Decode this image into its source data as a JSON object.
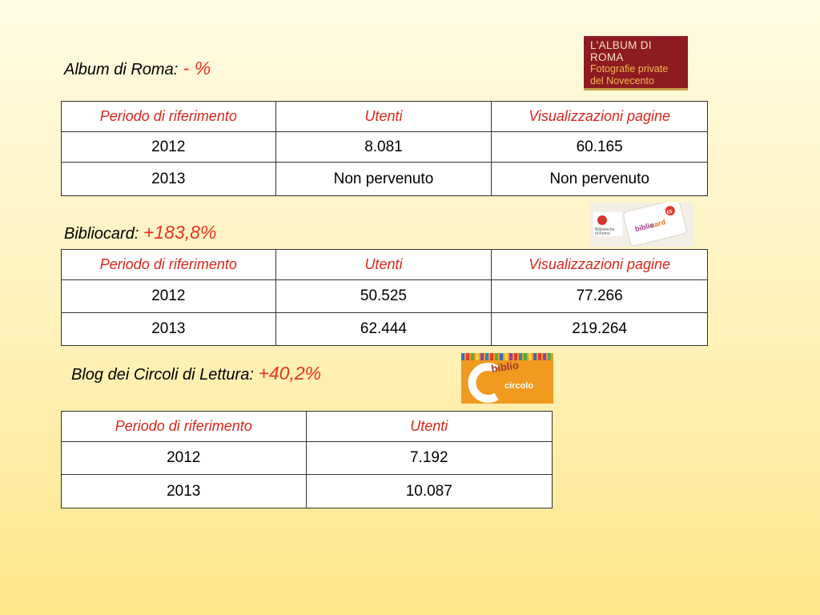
{
  "sections": {
    "album": {
      "title": "Album di Roma:",
      "delta": " - %",
      "headers": [
        "Periodo di riferimento",
        "Utenti",
        "Visualizzazioni pagine"
      ],
      "rows": [
        [
          "2012",
          "8.081",
          "60.165"
        ],
        [
          "2013",
          "Non pervenuto",
          "Non pervenuto"
        ]
      ],
      "logo": {
        "line1": "L'ALBUM DI ROMA",
        "line2": "Fotografie private",
        "line3": "del Novecento"
      }
    },
    "bibliocard": {
      "title": "Bibliocard: ",
      "delta": "+183,8%",
      "headers": [
        "Periodo di riferimento",
        "Utenti",
        "Visualizzazioni pagine"
      ],
      "rows": [
        [
          "2012",
          "50.525",
          "77.266"
        ],
        [
          "2013",
          "62.444",
          "219.264"
        ]
      ],
      "logo": {
        "biblio": "biblio",
        "card": "card",
        "brand_line1": "Biblioteche",
        "brand_line2": "di Roma",
        "badge": "€5"
      }
    },
    "blog": {
      "title": "Blog dei Circoli di Lettura: ",
      "delta": "+40,2%",
      "headers": [
        "Periodo di riferimento",
        "Utenti"
      ],
      "rows": [
        [
          "2012",
          "7.192"
        ],
        [
          "2013",
          "10.087"
        ]
      ],
      "logo": {
        "biblio": "biblio",
        "circolo": "circolo"
      }
    }
  },
  "colors": {
    "accent": "#e8331f",
    "header_text": "#d8261b",
    "album_logo_bg": "#8e1b22",
    "circolo_logo_bg": "#f19a1f"
  }
}
